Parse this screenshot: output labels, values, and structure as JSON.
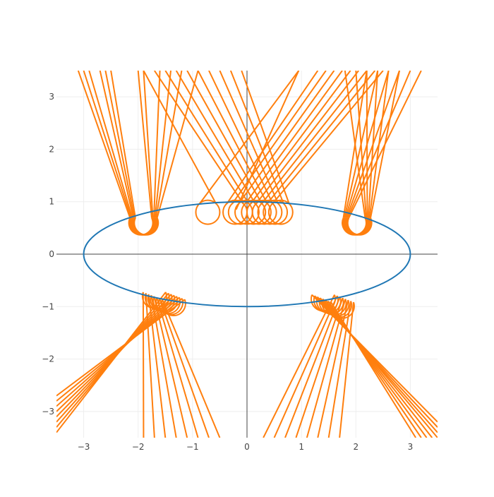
{
  "chart_data": {
    "type": "line",
    "x_range": [
      -3.5,
      3.5
    ],
    "y_range": [
      -3.5,
      3.5
    ],
    "x_ticks": [
      -3,
      -2,
      -1,
      0,
      1,
      2,
      3
    ],
    "y_ticks": [
      -3,
      -2,
      -1,
      0,
      1,
      2,
      3
    ],
    "x_tick_labels": [
      "−3",
      "−2",
      "−1",
      "0",
      "1",
      "2",
      "3"
    ],
    "y_tick_labels": [
      "−3",
      "−2",
      "−1",
      "0",
      "1",
      "2",
      "3"
    ],
    "grid": true,
    "zero_lines": true,
    "legend": "none",
    "colors": {
      "ellipse": "#1f77b4",
      "rays": "#ff7f0e",
      "grid": "#eeeeee",
      "zeroline": "#444444",
      "tick_text": "#444444"
    },
    "ellipse": {
      "center": [
        0,
        0
      ],
      "a": 3,
      "b": 1
    },
    "ray_groups": [
      {
        "name": "upper-left",
        "center": [
          -1.95,
          0.6
        ],
        "r": 0.22,
        "dx": [
          0.0,
          0.02,
          0.04,
          0.06,
          0.08,
          0.1
        ],
        "dy": [
          0,
          0,
          0,
          0,
          0,
          0
        ],
        "arc": [
          25,
          155
        ],
        "in_top": [
          [
            -3.1,
            3.5
          ],
          [
            -3.0,
            3.5
          ],
          [
            -2.9,
            3.5
          ],
          [
            -2.7,
            3.5
          ],
          [
            -2.6,
            3.5
          ],
          [
            -2.5,
            3.5
          ]
        ],
        "out_top": [
          [
            -2.0,
            3.5
          ],
          [
            -1.9,
            3.5
          ],
          [
            -1.6,
            3.5
          ],
          [
            -1.4,
            3.5
          ],
          [
            -1.2,
            3.5
          ],
          [
            -0.9,
            3.5
          ]
        ]
      },
      {
        "name": "upper-right",
        "center": [
          1.97,
          0.6
        ],
        "r": 0.22,
        "dx": [
          0.0,
          0.02,
          0.04,
          0.06,
          0.08,
          0.1
        ],
        "dy": [
          0,
          0,
          0,
          0,
          0,
          0
        ],
        "arc": [
          25,
          155
        ],
        "in_top": [
          [
            2.2,
            3.5
          ],
          [
            2.4,
            3.5
          ],
          [
            2.6,
            3.5
          ],
          [
            2.8,
            3.5
          ],
          [
            3.0,
            3.5
          ],
          [
            3.2,
            3.5
          ]
        ],
        "out_top": [
          [
            1.8,
            3.5
          ],
          [
            2.0,
            3.5
          ],
          [
            2.2,
            3.5
          ],
          [
            2.4,
            3.5
          ],
          [
            2.6,
            3.5
          ],
          [
            2.8,
            3.5
          ]
        ]
      },
      {
        "name": "top-center",
        "center": [
          0.0,
          0.8
        ],
        "r": 0.22,
        "dx": [
          -0.72,
          -0.22,
          -0.12,
          0.0,
          0.12,
          0.22,
          0.32,
          0.42,
          0.52,
          0.62
        ],
        "dy": [
          0,
          0,
          0,
          0,
          0,
          0,
          0,
          0,
          0,
          0
        ],
        "arc": [
          0,
          360
        ],
        "in_top": [
          [
            0.95,
            3.5
          ],
          [
            1.3,
            3.5
          ],
          [
            1.45,
            3.5
          ],
          [
            1.6,
            3.5
          ],
          [
            1.75,
            3.5
          ],
          [
            1.9,
            3.5
          ],
          [
            2.05,
            3.5
          ],
          [
            2.2,
            3.5
          ],
          [
            2.35,
            3.5
          ],
          [
            2.5,
            3.5
          ]
        ],
        "out_top": [
          [
            -1.9,
            3.5
          ],
          [
            -1.7,
            3.5
          ],
          [
            -1.5,
            3.5
          ],
          [
            -1.3,
            3.5
          ],
          [
            -1.1,
            3.5
          ],
          [
            -0.9,
            3.5
          ],
          [
            -0.7,
            3.5
          ],
          [
            -0.5,
            3.5
          ],
          [
            -0.3,
            3.5
          ],
          [
            -0.1,
            3.5
          ]
        ]
      },
      {
        "name": "lower-left",
        "center": [
          -1.7,
          -0.65
        ],
        "r": 0.22,
        "dx": [
          0.0,
          0.05,
          0.1,
          0.15,
          0.2,
          0.25,
          0.3,
          0.35
        ],
        "dy": [
          0.0,
          -0.02,
          -0.04,
          -0.06,
          -0.08,
          -0.1,
          -0.12,
          -0.14
        ],
        "arc": [
          200,
          340
        ],
        "in_bottom": [
          [
            -3.5,
            -3.4
          ],
          [
            -3.5,
            -3.3
          ],
          [
            -3.5,
            -3.2
          ],
          [
            -3.5,
            -3.1
          ],
          [
            -3.5,
            -3.0
          ],
          [
            -3.5,
            -2.9
          ],
          [
            -3.5,
            -2.8
          ],
          [
            -3.5,
            -2.7
          ]
        ],
        "out_bottom": [
          [
            -1.9,
            -3.5
          ],
          [
            -1.7,
            -3.5
          ],
          [
            -1.5,
            -3.5
          ],
          [
            -1.3,
            -3.5
          ],
          [
            -1.1,
            -3.5
          ],
          [
            -0.9,
            -3.5
          ],
          [
            -0.7,
            -3.5
          ],
          [
            -0.5,
            -3.5
          ]
        ]
      },
      {
        "name": "lower-right",
        "center": [
          1.4,
          -0.7
        ],
        "r": 0.22,
        "dx": [
          0.0,
          0.05,
          0.1,
          0.15,
          0.2,
          0.25,
          0.3,
          0.35
        ],
        "dy": [
          0.0,
          -0.02,
          -0.04,
          -0.06,
          -0.08,
          -0.1,
          -0.12,
          -0.14
        ],
        "arc": [
          200,
          340
        ],
        "in_bottom": [
          [
            0.3,
            -3.5
          ],
          [
            0.5,
            -3.5
          ],
          [
            0.7,
            -3.5
          ],
          [
            0.9,
            -3.5
          ],
          [
            1.1,
            -3.5
          ],
          [
            1.3,
            -3.5
          ],
          [
            1.5,
            -3.5
          ],
          [
            1.7,
            -3.5
          ]
        ],
        "out_bottom": [
          [
            3.5,
            -3.2
          ],
          [
            3.5,
            -3.3
          ],
          [
            3.5,
            -3.4
          ],
          [
            3.5,
            -3.5
          ],
          [
            3.4,
            -3.5
          ],
          [
            3.3,
            -3.5
          ],
          [
            3.2,
            -3.5
          ],
          [
            3.1,
            -3.5
          ]
        ]
      }
    ],
    "single_ray": {
      "from": [
        -0.2,
        0.85
      ],
      "to": [
        0.95,
        3.5
      ]
    }
  }
}
